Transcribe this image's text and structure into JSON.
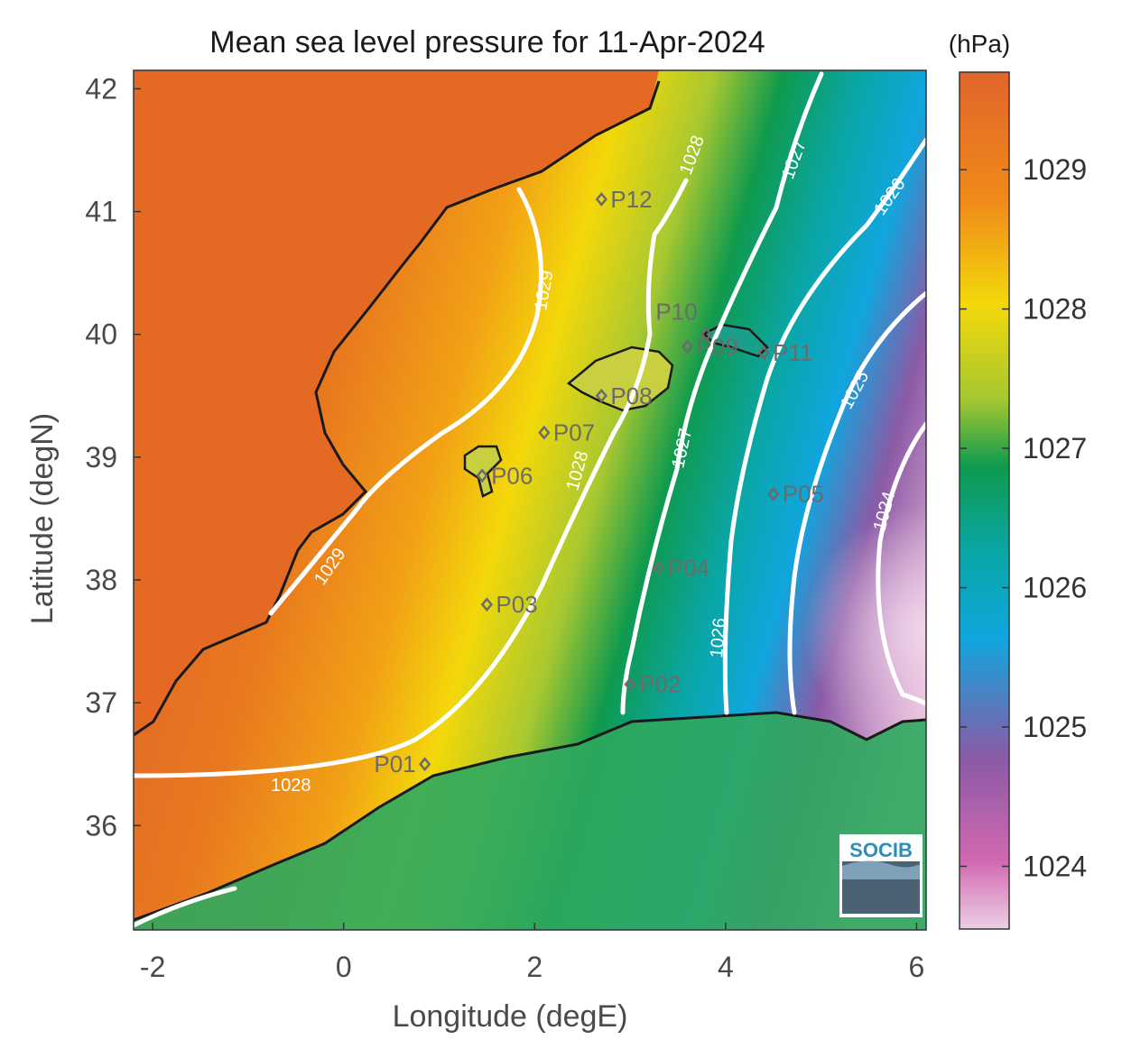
{
  "title": "Mean sea level pressure for 11-Apr-2024",
  "xlabel": "Longitude (degE)",
  "ylabel": "Latitude (degN)",
  "x_ticks": [
    "-2",
    "0",
    "2",
    "4",
    "6"
  ],
  "y_ticks": [
    "42",
    "41",
    "40",
    "39",
    "38",
    "37",
    "36"
  ],
  "colorbar": {
    "unit_label": "(hPa)",
    "ticks": [
      "1029",
      "1028",
      "1027",
      "1026",
      "1025",
      "1024"
    ]
  },
  "contour_labels": [
    "1029",
    "1029",
    "1028",
    "1028",
    "1028",
    "1027",
    "1027",
    "1026",
    "1026",
    "1025",
    "1024"
  ],
  "points": [
    {
      "label": "P01",
      "lon": 0.85,
      "lat": 36.5
    },
    {
      "label": "P02",
      "lon": 3.0,
      "lat": 37.15
    },
    {
      "label": "P03",
      "lon": 1.5,
      "lat": 37.8
    },
    {
      "label": "P04",
      "lon": 3.3,
      "lat": 38.1
    },
    {
      "label": "P05",
      "lon": 4.5,
      "lat": 38.7
    },
    {
      "label": "P06",
      "lon": 1.45,
      "lat": 38.85
    },
    {
      "label": "P07",
      "lon": 2.1,
      "lat": 39.2
    },
    {
      "label": "P08",
      "lon": 2.7,
      "lat": 39.5
    },
    {
      "label": "P09",
      "lon": 3.6,
      "lat": 39.9
    },
    {
      "label": "P10",
      "lon": 3.8,
      "lat": 40.0
    },
    {
      "label": "P11",
      "lon": 4.4,
      "lat": 39.85
    },
    {
      "label": "P12",
      "lon": 2.7,
      "lat": 41.1
    }
  ],
  "logo_text": "SOCIB",
  "colors": {
    "high": "#e0652a",
    "orange": "#f08a1a",
    "yellow": "#f3d80a",
    "green": "#0f9a4e",
    "teal": "#0aa6a6",
    "blue": "#10a6de",
    "purple": "#8b5aa6",
    "pink": "#e8b8d8",
    "coast": "#1a1a1a",
    "contour": "#ffffff"
  }
}
